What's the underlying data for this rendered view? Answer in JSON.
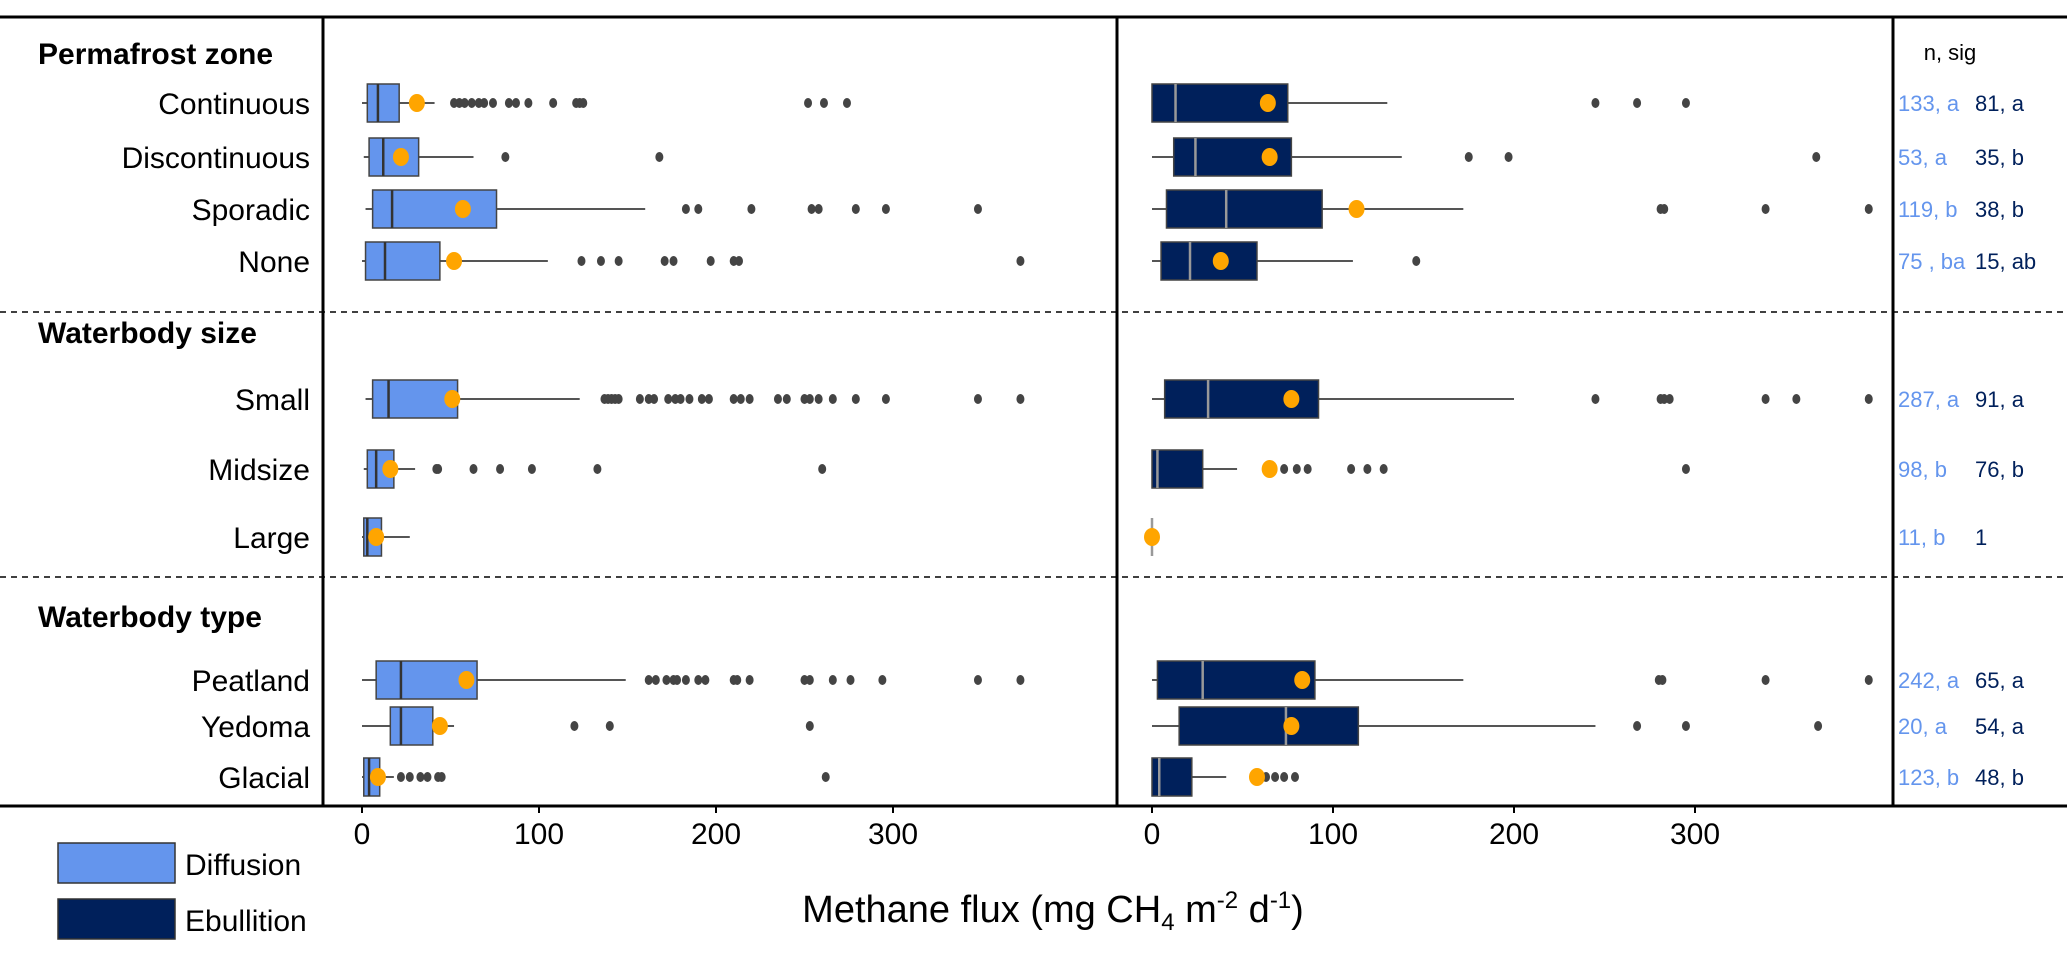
{
  "chart_data": {
    "type": "boxplot",
    "xlabel_main": "Methane flux  (mg CH",
    "xlabel_sub": "4",
    "xlabel_rest1": " m",
    "xlabel_sup1": "-2",
    "xlabel_rest2": " d",
    "xlabel_sup2": "-1",
    "xlabel_close": ")",
    "xlim": [
      0,
      400
    ],
    "xticks": [
      "0",
      "100",
      "200",
      "300"
    ],
    "xtick_values": [
      0,
      100,
      200,
      300
    ],
    "annotation_header": "n, sig",
    "colors": {
      "diffusion": "#6495ED",
      "ebullition": "#00205B",
      "mean": "#FFA500",
      "outlier": "#444444"
    },
    "legend": [
      {
        "name": "Diffusion",
        "key": "diffusion"
      },
      {
        "name": "Ebullition",
        "key": "ebullition"
      }
    ],
    "groups": [
      {
        "title": "Permafrost zone",
        "categories": [
          {
            "name": "Continuous",
            "diffusion": {
              "min": 0,
              "q1": 3,
              "med": 9,
              "q3": 21,
              "max": 41,
              "mean": 31,
              "outliers": [
                52,
                55,
                58,
                62,
                66,
                69,
                74,
                83,
                87,
                94,
                108,
                121,
                123,
                125,
                252,
                261,
                274
              ]
            },
            "ebullition": {
              "min": 0,
              "q1": 0,
              "med": 13,
              "q3": 75,
              "max": 130,
              "mean": 64,
              "outliers": [
                245,
                268,
                295
              ]
            },
            "diff_label": "133, a",
            "ebul_label": "81, a"
          },
          {
            "name": "Discontinuous",
            "diffusion": {
              "min": 1,
              "q1": 4,
              "med": 12,
              "q3": 32,
              "max": 63,
              "mean": 22,
              "outliers": [
                81,
                168
              ]
            },
            "ebullition": {
              "min": 0,
              "q1": 12,
              "med": 24,
              "q3": 77,
              "max": 138,
              "mean": 65,
              "outliers": [
                175,
                197,
                367
              ]
            },
            "diff_label": "53, a",
            "ebul_label": "35, b"
          },
          {
            "name": "Sporadic",
            "diffusion": {
              "min": 2,
              "q1": 6,
              "med": 17,
              "q3": 76,
              "max": 160,
              "mean": 57,
              "outliers": [
                183,
                190,
                220,
                254,
                258,
                279,
                296,
                348
              ]
            },
            "ebullition": {
              "min": 0,
              "q1": 8,
              "med": 41,
              "q3": 94,
              "max": 172,
              "mean": 113,
              "outliers": [
                281,
                283,
                339,
                396
              ]
            },
            "diff_label": "119, b",
            "ebul_label": "38, b"
          },
          {
            "name": "None",
            "diffusion": {
              "min": 0,
              "q1": 2,
              "med": 13,
              "q3": 44,
              "max": 105,
              "mean": 52,
              "outliers": [
                124,
                135,
                145,
                171,
                176,
                197,
                210,
                213,
                372
              ]
            },
            "ebullition": {
              "min": 0,
              "q1": 5,
              "med": 21,
              "q3": 58,
              "max": 111,
              "mean": 38,
              "outliers": [
                146
              ]
            },
            "diff_label": "75 , ba",
            "ebul_label": "15, ab"
          }
        ]
      },
      {
        "title": "Waterbody size",
        "categories": [
          {
            "name": "Small",
            "diffusion": {
              "min": 2,
              "q1": 6,
              "med": 15,
              "q3": 54,
              "max": 123,
              "mean": 51,
              "outliers": [
                137,
                139,
                141,
                143,
                145,
                157,
                162,
                165,
                173,
                177,
                180,
                185,
                192,
                196,
                210,
                214,
                219,
                235,
                240,
                250,
                253,
                258,
                266,
                279,
                296,
                348,
                372
              ]
            },
            "ebullition": {
              "min": 0,
              "q1": 7,
              "med": 31,
              "q3": 92,
              "max": 200,
              "mean": 77,
              "outliers": [
                245,
                281,
                283,
                286,
                339,
                356,
                396
              ]
            },
            "diff_label": "287, a",
            "ebul_label": "91, a"
          },
          {
            "name": "Midsize",
            "diffusion": {
              "min": 1,
              "q1": 3,
              "med": 8,
              "q3": 18,
              "max": 30,
              "mean": 16,
              "outliers": [
                42,
                43,
                63,
                78,
                96,
                133,
                260
              ]
            },
            "ebullition": {
              "min": 0,
              "q1": 0,
              "med": 3,
              "q3": 28,
              "max": 47,
              "mean": 65,
              "outliers": [
                73,
                80,
                86,
                110,
                119,
                128,
                295
              ]
            },
            "diff_label": "98, b",
            "ebul_label": "76, b"
          },
          {
            "name": "Large",
            "diffusion": {
              "min": 0,
              "q1": 1,
              "med": 3,
              "q3": 11,
              "max": 27,
              "mean": 8,
              "outliers": []
            },
            "ebullition": {
              "min": 0,
              "q1": 0,
              "med": 0,
              "q3": 0,
              "max": 0,
              "mean": 0,
              "outliers": []
            },
            "diff_label": "11, b",
            "ebul_label": "1"
          }
        ]
      },
      {
        "title": "Waterbody type",
        "categories": [
          {
            "name": "Peatland",
            "diffusion": {
              "min": 0,
              "q1": 8,
              "med": 22,
              "q3": 65,
              "max": 149,
              "mean": 59,
              "outliers": [
                162,
                166,
                172,
                176,
                178,
                183,
                190,
                194,
                210,
                212,
                219,
                250,
                253,
                266,
                276,
                294,
                348,
                372
              ]
            },
            "ebullition": {
              "min": 0,
              "q1": 3,
              "med": 28,
              "q3": 90,
              "max": 172,
              "mean": 83,
              "outliers": [
                280,
                282,
                339,
                396
              ]
            },
            "diff_label": "242, a",
            "ebul_label": "65, a"
          },
          {
            "name": "Yedoma",
            "diffusion": {
              "min": 0,
              "q1": 16,
              "med": 22,
              "q3": 40,
              "max": 52,
              "mean": 44,
              "outliers": [
                120,
                140,
                253
              ]
            },
            "ebullition": {
              "min": 0,
              "q1": 15,
              "med": 74,
              "q3": 114,
              "max": 245,
              "mean": 77,
              "outliers": [
                268,
                295,
                368
              ]
            },
            "diff_label": "20, a",
            "ebul_label": "54, a"
          },
          {
            "name": "Glacial",
            "diffusion": {
              "min": 0,
              "q1": 1,
              "med": 4,
              "q3": 10,
              "max": 18,
              "mean": 9,
              "outliers": [
                22,
                27,
                33,
                37,
                43,
                45,
                262
              ]
            },
            "ebullition": {
              "min": 0,
              "q1": 0,
              "med": 4,
              "q3": 22,
              "max": 41,
              "mean": 58,
              "outliers": [
                63,
                68,
                73,
                79
              ]
            },
            "diff_label": "123, b",
            "ebul_label": "48, b"
          }
        ]
      }
    ]
  }
}
